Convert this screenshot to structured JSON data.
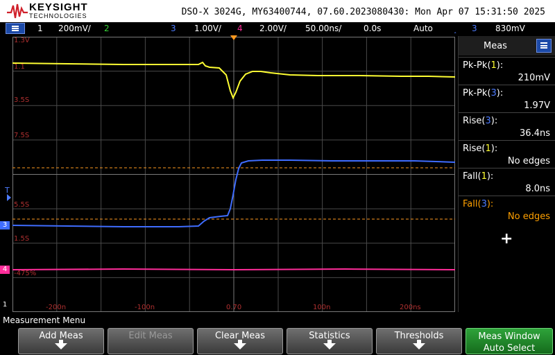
{
  "header": {
    "brand": "KEYSIGHT",
    "brand_sub": "TECHNOLOGIES",
    "title": "DSO-X 3024G, MY63400744, 07.60.2023080430: Mon Apr 07 15:31:50 2025"
  },
  "status": {
    "ch1_num": "1",
    "ch1_scale": "200mV/",
    "ch2_num": "2",
    "ch3_num": "3",
    "ch3_scale": "1.00V/",
    "ch4_num": "4",
    "ch4_scale": "2.00V/",
    "timebase": "50.00ns/",
    "delay": "0.0s",
    "mode": "Auto",
    "trig_ch": "3",
    "trig_level": "830mV"
  },
  "grid_labels": {
    "ch1_top": "1.3V",
    "ch1_mid": "1.1",
    "y_labels": [
      "3.5S",
      "7.5S",
      "5.5S",
      "1.5S",
      "-475%"
    ],
    "x_labels": [
      "-200n",
      "-100n",
      "0.70",
      "100n",
      "200ns"
    ]
  },
  "measurements": {
    "panel_title": "Meas",
    "items": [
      {
        "name": "Pk-Pk",
        "ch": "1",
        "value": "210mV",
        "color": "white"
      },
      {
        "name": "Pk-Pk",
        "ch": "3",
        "value": "1.97V",
        "color": "white"
      },
      {
        "name": "Rise",
        "ch": "3",
        "value": "36.4ns",
        "color": "white"
      },
      {
        "name": "Rise",
        "ch": "1",
        "value": "No edges",
        "color": "white"
      },
      {
        "name": "Fall",
        "ch": "1",
        "value": "8.0ns",
        "color": "white"
      },
      {
        "name": "Fall",
        "ch": "3",
        "value": "No edges",
        "color": "orange"
      }
    ],
    "add_symbol": "+"
  },
  "softkeys": {
    "menu_label": "Measurement Menu",
    "keys": [
      "Add Meas",
      "Edit Meas",
      "Clear Meas",
      "Statistics",
      "Thresholds"
    ],
    "green_key_line1": "Meas Window",
    "green_key_line2": "Auto Select"
  },
  "colors": {
    "ch1": "#ffff33",
    "ch3": "#3f6dff",
    "ch4": "#ff2d9a",
    "cursor": "#ff9a1f",
    "grid": "#5a5a5a"
  }
}
